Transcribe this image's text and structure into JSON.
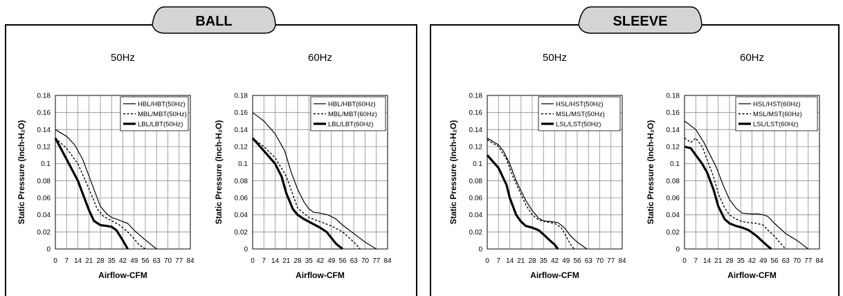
{
  "panels": [
    {
      "key": "ball",
      "title": "BALL"
    },
    {
      "key": "sleeve",
      "title": "SLEEVE"
    }
  ],
  "chart_data": [
    {
      "type": "line",
      "group": "BALL",
      "title": "50Hz",
      "xlabel": "Airflow-CFM",
      "ylabel": "Static Pressure (Inch-H₂O)",
      "x_ticks": [
        "0",
        "7",
        "14",
        "21",
        "28",
        "35",
        "42",
        "49",
        "56",
        "63",
        "70",
        "77",
        "84"
      ],
      "y_ticks": [
        "0",
        "0.02",
        "0.04",
        "0.06",
        "0.08",
        "0.1",
        "0.12",
        "0.14",
        "0.16",
        "0.18"
      ],
      "xlim": [
        0,
        84
      ],
      "ylim": [
        0,
        0.18
      ],
      "grid": true,
      "legend_position": "top-right",
      "series": [
        {
          "name": "HBL/HBT(50Hz)",
          "style": "thin",
          "x": [
            0,
            7,
            12,
            17,
            21,
            24,
            28,
            32,
            35,
            38,
            42,
            45,
            49,
            55,
            63
          ],
          "y": [
            0.14,
            0.132,
            0.122,
            0.105,
            0.085,
            0.07,
            0.05,
            0.041,
            0.037,
            0.035,
            0.032,
            0.03,
            0.022,
            0.012,
            0
          ]
        },
        {
          "name": "MBL/MBT(50Hz)",
          "style": "dashed",
          "x": [
            0,
            7,
            14,
            21,
            26,
            30,
            35,
            40,
            45,
            49,
            52,
            56
          ],
          "y": [
            0.13,
            0.118,
            0.1,
            0.07,
            0.047,
            0.038,
            0.033,
            0.028,
            0.02,
            0.012,
            0.005,
            0
          ]
        },
        {
          "name": "LBL/LBT(50Hz)",
          "style": "thick",
          "x": [
            0,
            7,
            14,
            18,
            21,
            24,
            28,
            32,
            35,
            38,
            42,
            45
          ],
          "y": [
            0.13,
            0.105,
            0.08,
            0.06,
            0.045,
            0.033,
            0.028,
            0.027,
            0.026,
            0.022,
            0.01,
            0
          ]
        }
      ]
    },
    {
      "type": "line",
      "group": "BALL",
      "title": "60Hz",
      "xlabel": "Airflow-CFM",
      "ylabel": "Static Pressure (Inch-H₂O)",
      "x_ticks": [
        "0",
        "7",
        "14",
        "21",
        "28",
        "35",
        "42",
        "49",
        "56",
        "63",
        "70",
        "77",
        "84"
      ],
      "y_ticks": [
        "0",
        "0.02",
        "0.04",
        "0.06",
        "0.08",
        "0.1",
        "0.12",
        "0.14",
        "0.16",
        "0.18"
      ],
      "xlim": [
        0,
        84
      ],
      "ylim": [
        0,
        0.18
      ],
      "grid": true,
      "legend_position": "top-right",
      "series": [
        {
          "name": "HBL/HBT(60Hz)",
          "style": "thin",
          "x": [
            0,
            7,
            14,
            20,
            24,
            28,
            32,
            35,
            38,
            42,
            47,
            52,
            56,
            63,
            70,
            77
          ],
          "y": [
            0.16,
            0.15,
            0.135,
            0.115,
            0.09,
            0.07,
            0.055,
            0.047,
            0.043,
            0.042,
            0.04,
            0.035,
            0.028,
            0.018,
            0.008,
            0
          ]
        },
        {
          "name": "MBL/MBT(60Hz)",
          "style": "dashed",
          "x": [
            0,
            7,
            14,
            21,
            28,
            35,
            42,
            49,
            56,
            63,
            67
          ],
          "y": [
            0.13,
            0.12,
            0.107,
            0.085,
            0.048,
            0.037,
            0.032,
            0.027,
            0.02,
            0.008,
            0
          ]
        },
        {
          "name": "LBL/LBT(60Hz)",
          "style": "thick",
          "x": [
            0,
            7,
            14,
            18,
            21,
            25,
            28,
            32,
            36,
            42,
            46,
            49,
            52,
            56
          ],
          "y": [
            0.13,
            0.115,
            0.1,
            0.085,
            0.065,
            0.047,
            0.04,
            0.035,
            0.031,
            0.025,
            0.02,
            0.013,
            0.006,
            0
          ]
        }
      ]
    },
    {
      "type": "line",
      "group": "SLEEVE",
      "title": "50Hz",
      "xlabel": "Airflow-CFM",
      "ylabel": "Static Pressure (Inch-H₂O)",
      "x_ticks": [
        "0",
        "7",
        "14",
        "21",
        "28",
        "35",
        "42",
        "49",
        "56",
        "63",
        "70",
        "77",
        "84"
      ],
      "y_ticks": [
        "0",
        "0.02",
        "0.04",
        "0.06",
        "0.08",
        "0.1",
        "0.12",
        "0.14",
        "0.16",
        "0.18"
      ],
      "xlim": [
        0,
        84
      ],
      "ylim": [
        0,
        0.18
      ],
      "grid": true,
      "legend_position": "top-right",
      "series": [
        {
          "name": "HSL/HST(50Hz)",
          "style": "thin",
          "x": [
            0,
            7,
            10,
            14,
            18,
            21,
            24,
            28,
            32,
            35,
            40,
            44,
            48,
            52,
            56,
            62
          ],
          "y": [
            0.13,
            0.122,
            0.115,
            0.1,
            0.08,
            0.068,
            0.057,
            0.045,
            0.036,
            0.033,
            0.032,
            0.031,
            0.025,
            0.015,
            0.008,
            0
          ]
        },
        {
          "name": "MSL/MST(50Hz)",
          "style": "dashed",
          "x": [
            0,
            7,
            12,
            16,
            20,
            24,
            28,
            32,
            36,
            42,
            46,
            49,
            52,
            54
          ],
          "y": [
            0.128,
            0.12,
            0.105,
            0.085,
            0.068,
            0.052,
            0.04,
            0.034,
            0.032,
            0.03,
            0.025,
            0.015,
            0.005,
            0
          ]
        },
        {
          "name": "LSL/LST(50Hz)",
          "style": "thick",
          "x": [
            0,
            7,
            12,
            14,
            18,
            21,
            24,
            28,
            32,
            35,
            39,
            42,
            44
          ],
          "y": [
            0.11,
            0.095,
            0.075,
            0.06,
            0.04,
            0.032,
            0.027,
            0.025,
            0.022,
            0.017,
            0.01,
            0.005,
            0
          ]
        }
      ]
    },
    {
      "type": "line",
      "group": "SLEEVE",
      "title": "60Hz",
      "xlabel": "Airflow-CFM",
      "ylabel": "Static Pressure (Inch-H₂O)",
      "x_ticks": [
        "0",
        "7",
        "14",
        "21",
        "28",
        "35",
        "42",
        "49",
        "56",
        "63",
        "70",
        "77",
        "84"
      ],
      "y_ticks": [
        "0",
        "0.02",
        "0.04",
        "0.06",
        "0.08",
        "0.1",
        "0.12",
        "0.14",
        "0.16",
        "0.18"
      ],
      "xlim": [
        0,
        84
      ],
      "ylim": [
        0,
        0.18
      ],
      "grid": true,
      "legend_position": "top-right",
      "series": [
        {
          "name": "HSL/HST(60Hz)",
          "style": "thin",
          "x": [
            0,
            7,
            12,
            16,
            20,
            24,
            28,
            32,
            36,
            42,
            46,
            49,
            52,
            56,
            63,
            70,
            77
          ],
          "y": [
            0.15,
            0.14,
            0.125,
            0.11,
            0.095,
            0.075,
            0.058,
            0.048,
            0.042,
            0.041,
            0.041,
            0.04,
            0.038,
            0.03,
            0.018,
            0.01,
            0
          ]
        },
        {
          "name": "MSL/MST(60Hz)",
          "style": "dashed",
          "x": [
            0,
            4,
            7,
            11,
            14,
            18,
            21,
            25,
            28,
            32,
            36,
            40,
            45,
            49,
            52,
            56,
            60,
            63
          ],
          "y": [
            0.13,
            0.125,
            0.13,
            0.12,
            0.105,
            0.085,
            0.065,
            0.048,
            0.04,
            0.035,
            0.032,
            0.031,
            0.03,
            0.028,
            0.022,
            0.015,
            0.006,
            0
          ]
        },
        {
          "name": "LSL/LST(60Hz)",
          "style": "thick",
          "x": [
            0,
            4,
            7,
            11,
            14,
            18,
            21,
            25,
            28,
            32,
            36,
            40,
            45,
            49,
            52,
            54
          ],
          "y": [
            0.12,
            0.118,
            0.11,
            0.1,
            0.09,
            0.07,
            0.05,
            0.035,
            0.03,
            0.027,
            0.025,
            0.022,
            0.015,
            0.008,
            0.003,
            0
          ]
        }
      ]
    }
  ]
}
